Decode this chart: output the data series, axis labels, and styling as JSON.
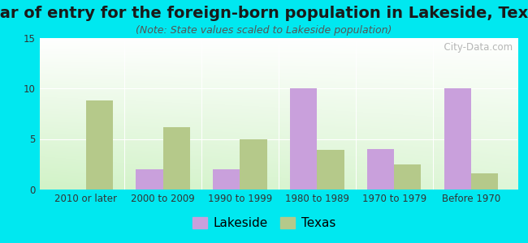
{
  "title": "Year of entry for the foreign-born population in Lakeside, Texas",
  "subtitle": "(Note: State values scaled to Lakeside population)",
  "categories": [
    "2010 or later",
    "2000 to 2009",
    "1990 to 1999",
    "1980 to 1989",
    "1970 to 1979",
    "Before 1970"
  ],
  "lakeside_values": [
    0,
    2,
    2,
    10,
    4,
    10
  ],
  "texas_values": [
    8.8,
    6.2,
    5.0,
    3.9,
    2.5,
    1.6
  ],
  "lakeside_color": "#c9a0dc",
  "texas_color": "#b5c98a",
  "background_color": "#00e8f0",
  "ylim": [
    0,
    15
  ],
  "yticks": [
    0,
    5,
    10,
    15
  ],
  "bar_width": 0.35,
  "title_fontsize": 14,
  "subtitle_fontsize": 9,
  "tick_fontsize": 8.5,
  "legend_fontsize": 11,
  "watermark": "  City-Data.com"
}
